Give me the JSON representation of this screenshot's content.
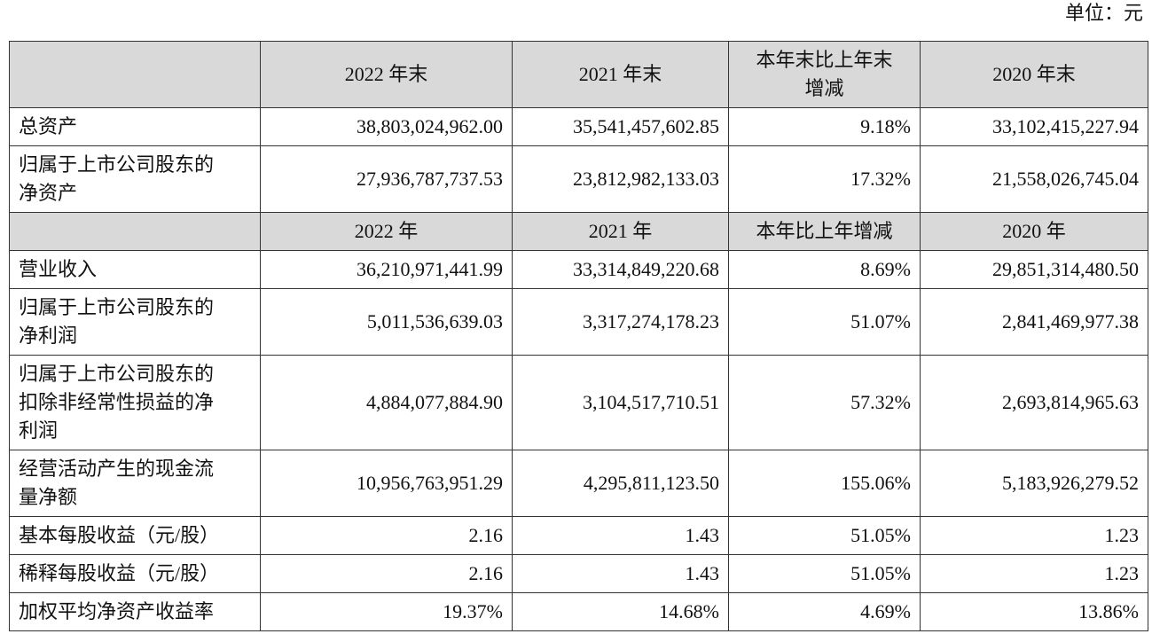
{
  "unit": "单位：元",
  "table": {
    "rows": [
      {
        "header": true,
        "cells": [
          null,
          "2022 年末",
          "2021 年末",
          "本年末比上年末增减",
          "2020 年末"
        ]
      },
      {
        "cells": [
          "总资产",
          "38,803,024,962.00",
          "35,541,457,602.85",
          "9.18%",
          "33,102,415,227.94"
        ]
      },
      {
        "cells": [
          "归属于上市公司股东的净资产",
          "27,936,787,737.53",
          "23,812,982,133.03",
          "17.32%",
          "21,558,026,745.04"
        ]
      },
      {
        "header": true,
        "cells": [
          null,
          "2022 年",
          "2021 年",
          "本年比上年增减",
          "2020 年"
        ]
      },
      {
        "cells": [
          "营业收入",
          "36,210,971,441.99",
          "33,314,849,220.68",
          "8.69%",
          "29,851,314,480.50"
        ]
      },
      {
        "cells": [
          "归属于上市公司股东的净利润",
          "5,011,536,639.03",
          "3,317,274,178.23",
          "51.07%",
          "2,841,469,977.38"
        ]
      },
      {
        "cells": [
          "归属于上市公司股东的扣除非经常性损益的净利润",
          "4,884,077,884.90",
          "3,104,517,710.51",
          "57.32%",
          "2,693,814,965.63"
        ]
      },
      {
        "cells": [
          "经营活动产生的现金流量净额",
          "10,956,763,951.29",
          "4,295,811,123.50",
          "155.06%",
          "5,183,926,279.52"
        ]
      },
      {
        "cells": [
          "基本每股收益（元/股）",
          "2.16",
          "1.43",
          "51.05%",
          "1.23"
        ]
      },
      {
        "cells": [
          "稀释每股收益（元/股）",
          "2.16",
          "1.43",
          "51.05%",
          "1.23"
        ]
      },
      {
        "cells": [
          "加权平均净资产收益率",
          "19.37%",
          "14.68%",
          "4.69%",
          "13.86%"
        ]
      }
    ]
  }
}
